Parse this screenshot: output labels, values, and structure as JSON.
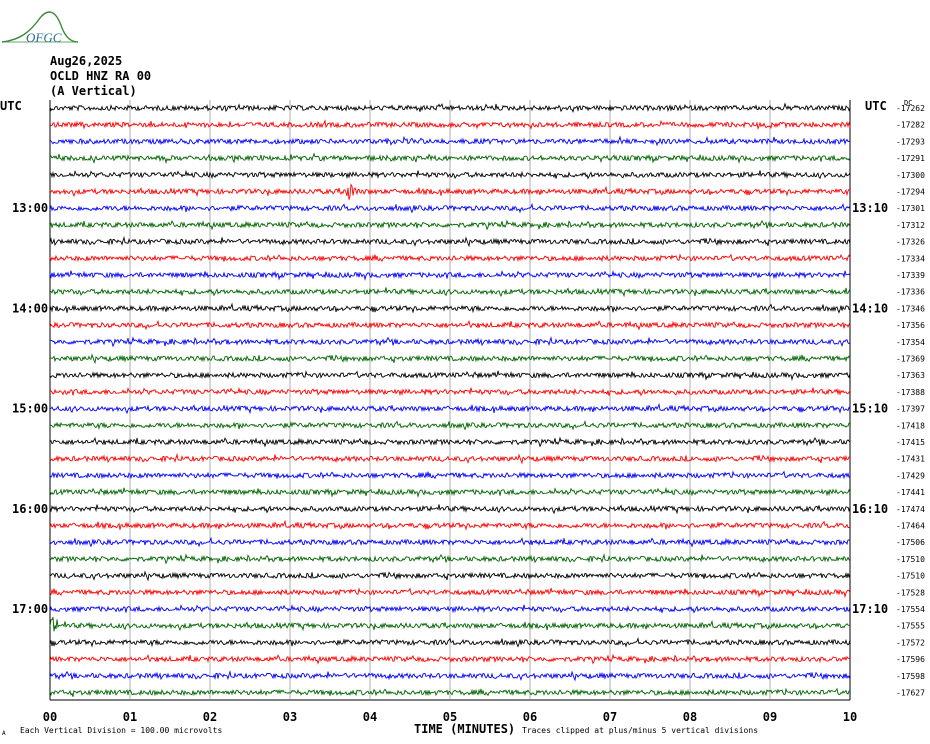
{
  "logo": {
    "text": "OFGC"
  },
  "header": {
    "date": "Aug26,2025",
    "station": "OCLD HNZ RA 00",
    "component": "(A Vertical)"
  },
  "colors": {
    "trace_cycle": [
      "#000000",
      "#ff0000",
      "#0000ff",
      "#006400"
    ],
    "grid": "#888888",
    "logo": "#3a8a3a"
  },
  "chart_data": {
    "type": "line",
    "title": "",
    "xlabel": "TIME (MINUTES)",
    "ylabel": "",
    "xlim": [
      0,
      10
    ],
    "x_ticks": [
      "00",
      "01",
      "02",
      "03",
      "04",
      "05",
      "06",
      "07",
      "08",
      "09",
      "10"
    ],
    "left_axis_label": "UTC",
    "right_axis_label": "UTC",
    "left_time_labels": [
      {
        "row": 6,
        "label": "13:00"
      },
      {
        "row": 12,
        "label": "14:00"
      },
      {
        "row": 18,
        "label": "15:00"
      },
      {
        "row": 24,
        "label": "16:00"
      },
      {
        "row": 30,
        "label": "17:00"
      }
    ],
    "right_time_labels": [
      {
        "row": 6,
        "label": "13:10"
      },
      {
        "row": 12,
        "label": "14:10"
      },
      {
        "row": 18,
        "label": "15:10"
      },
      {
        "row": 24,
        "label": "16:10"
      },
      {
        "row": 30,
        "label": "17:10"
      }
    ],
    "dc_header": "DC",
    "trace_offsets": [
      -17262,
      -17282,
      -17293,
      -17291,
      -17300,
      -17294,
      -17301,
      -17312,
      -17326,
      -17334,
      -17339,
      -17336,
      -17346,
      -17356,
      -17354,
      -17369,
      -17363,
      -17388,
      -17397,
      -17418,
      -17415,
      -17431,
      -17429,
      -17441,
      -17474,
      -17464,
      -17506,
      -17510,
      -17510,
      -17528,
      -17554,
      -17555,
      -17572,
      -17596,
      -17598,
      -17627
    ],
    "events": [
      {
        "row": 5,
        "minute": 3.75,
        "amplitude": "high"
      },
      {
        "row": 31,
        "minute": 0.05,
        "amplitude": "high"
      }
    ],
    "footer_left": "Each Vertical Division =  100.00 microvolts",
    "footer_right": "Traces clipped at plus/minus 5 vertical divisions",
    "footer_mark": "A"
  }
}
